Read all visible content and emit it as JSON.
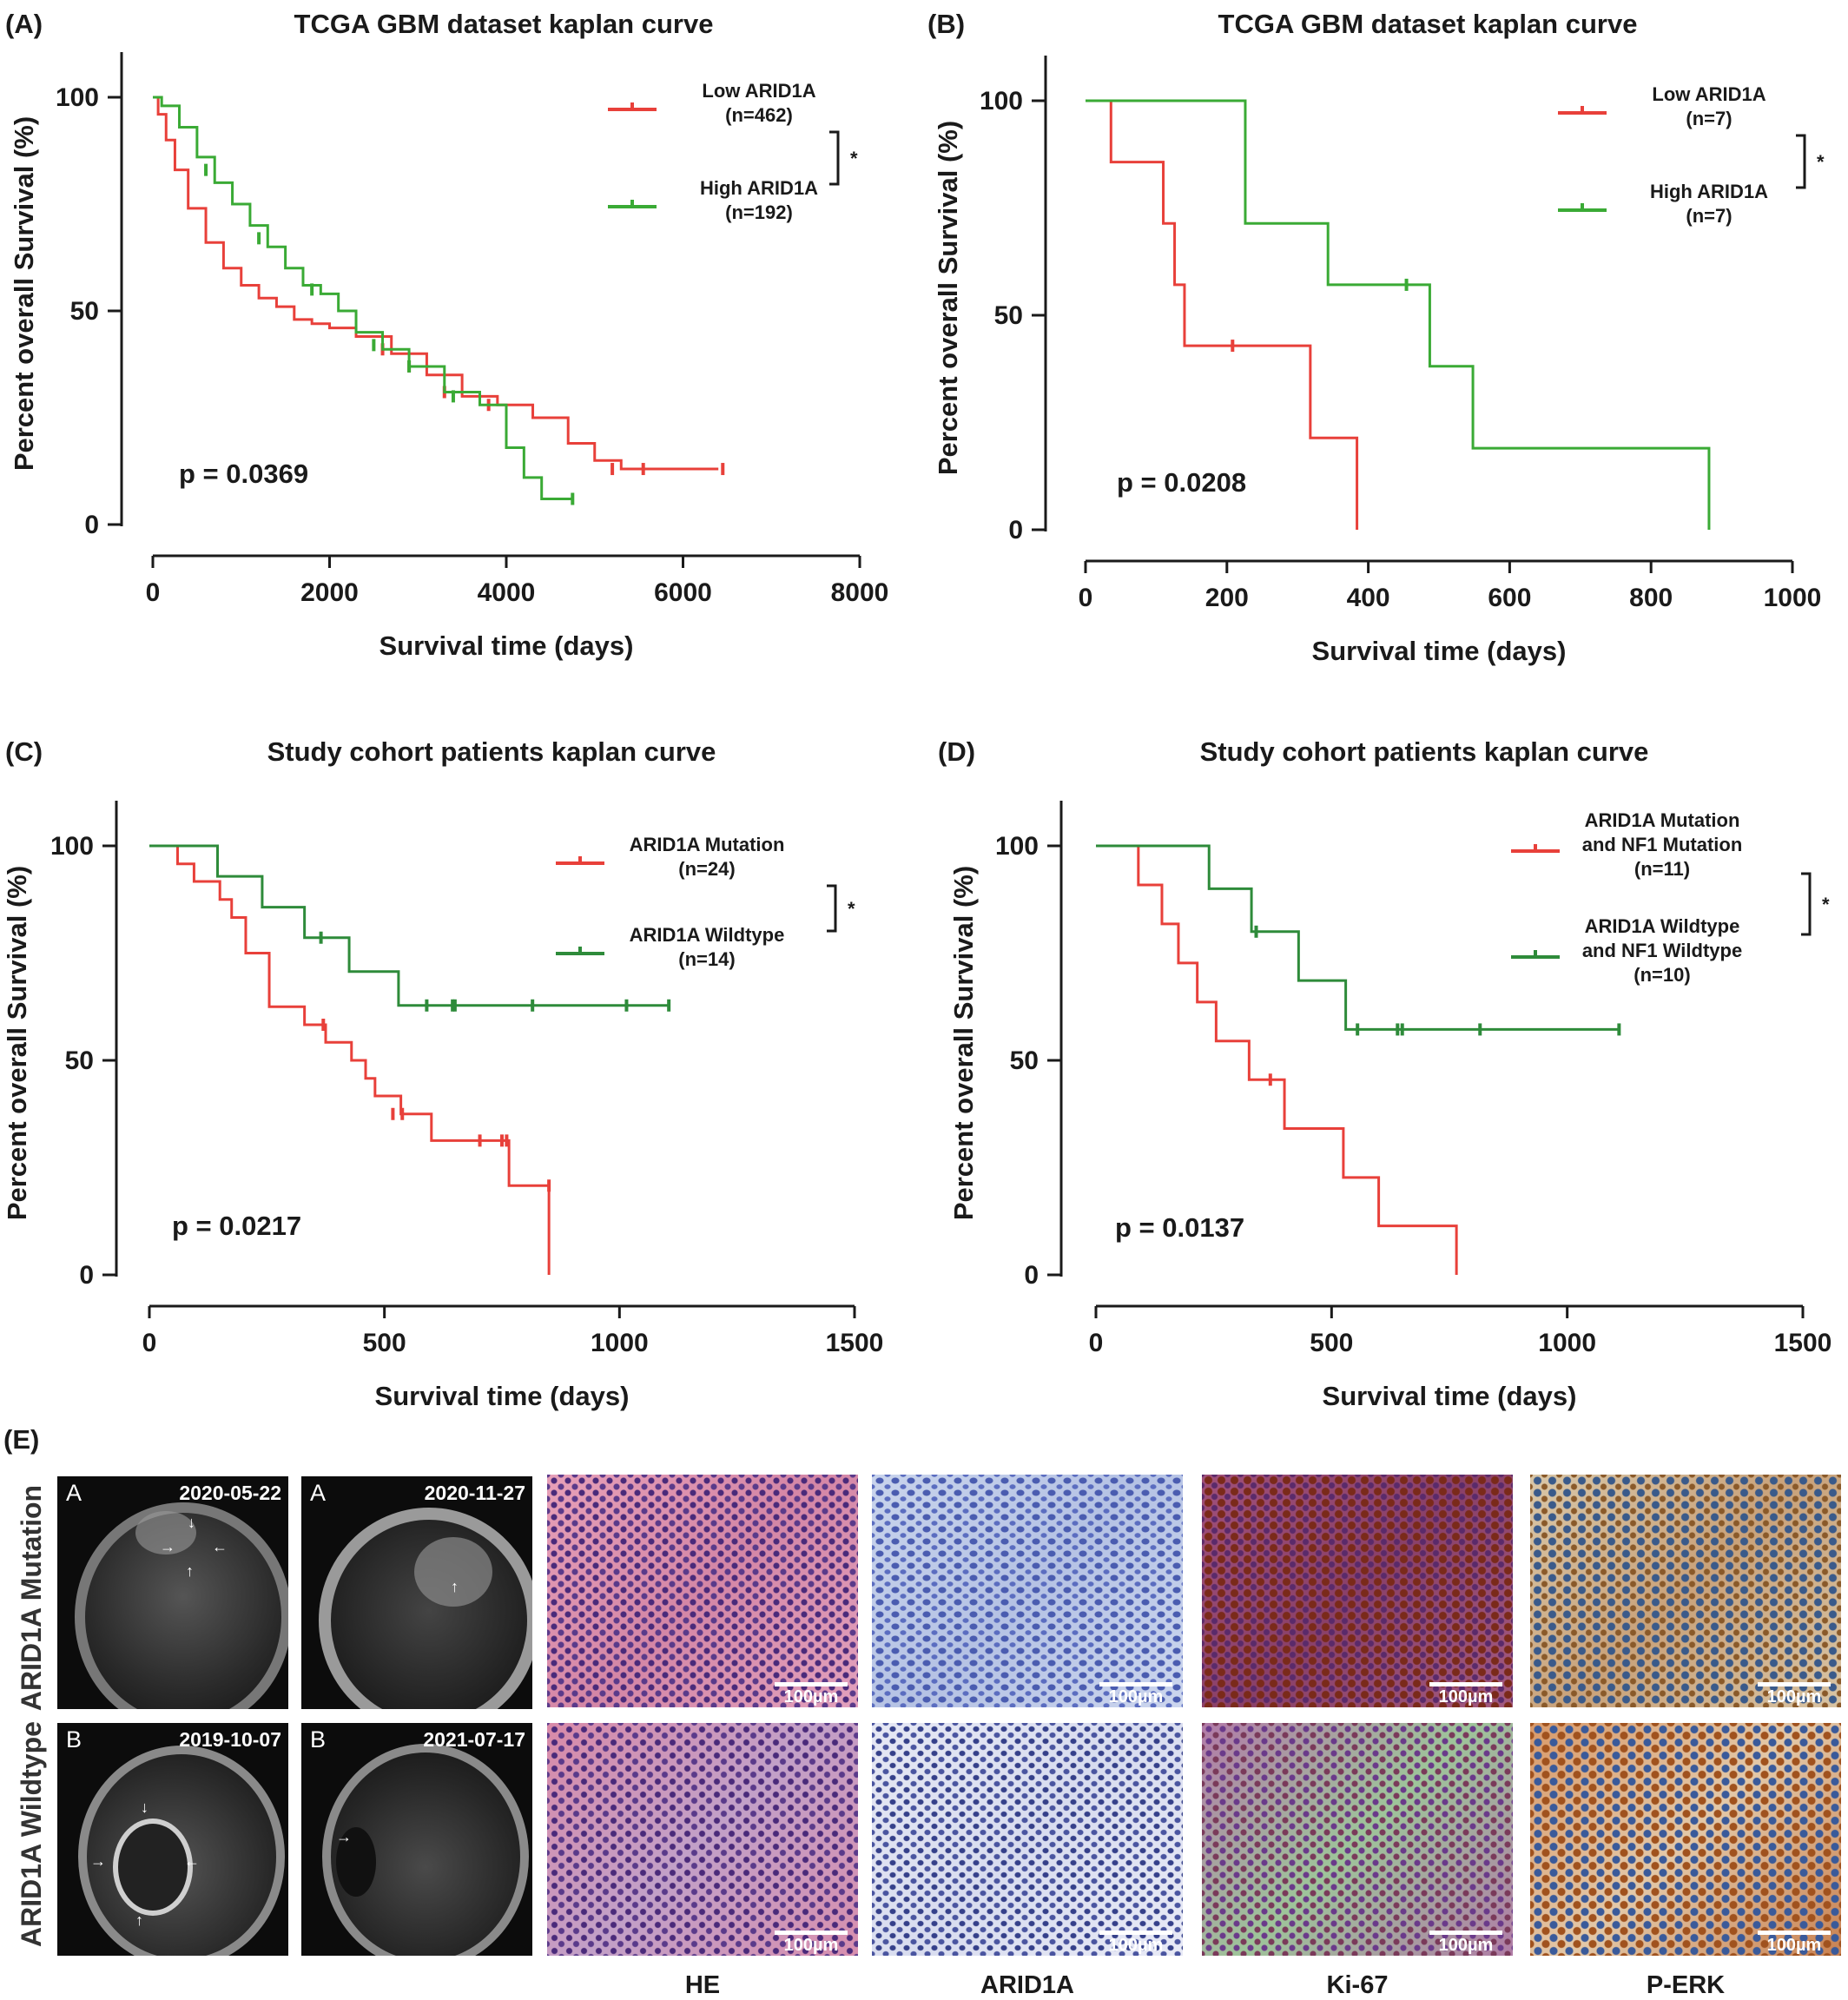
{
  "panels": [
    {
      "letter": "(A)",
      "title": "TCGA GBM dataset kaplan curve",
      "p_value": "p = 0.0369",
      "significance": "*",
      "legend": [
        {
          "lines": [
            "Low ARID1A",
            "(n=462)"
          ]
        },
        {
          "lines": [
            "High ARID1A",
            "(n=192)"
          ]
        }
      ]
    },
    {
      "letter": "(B)",
      "title": "TCGA GBM dataset kaplan curve",
      "p_value": "p = 0.0208",
      "significance": "*",
      "legend": [
        {
          "lines": [
            "Low ARID1A",
            "(n=7)"
          ]
        },
        {
          "lines": [
            "High ARID1A",
            "(n=7)"
          ]
        }
      ]
    },
    {
      "letter": "(C)",
      "title": "Study cohort patients kaplan curve",
      "p_value": "p = 0.0217",
      "significance": "*",
      "legend": [
        {
          "lines": [
            "ARID1A Mutation",
            "(n=24)"
          ]
        },
        {
          "lines": [
            "ARID1A Wildtype",
            "(n=14)"
          ]
        }
      ]
    },
    {
      "letter": "(D)",
      "title": "Study cohort patients kaplan curve",
      "p_value": "p = 0.0137",
      "significance": "*",
      "legend": [
        {
          "lines": [
            "ARID1A Mutation",
            "and NF1 Mutation",
            "(n=11)"
          ]
        },
        {
          "lines": [
            "ARID1A Wildtype",
            "and NF1 Wildtype",
            "(n=10)"
          ]
        }
      ]
    }
  ],
  "chart_data": [
    {
      "type": "line",
      "subtype": "kaplan-meier",
      "title": "TCGA GBM dataset kaplan curve",
      "xlabel": "Survival time (days)",
      "ylabel": "Percent overall Survival (%)",
      "xlim": [
        0,
        8000
      ],
      "ylim": [
        0,
        100
      ],
      "xticks": [
        0,
        2000,
        4000,
        6000,
        8000
      ],
      "yticks": [
        0,
        50,
        100
      ],
      "legend_position": "top-right",
      "series": [
        {
          "name": "Low ARID1A (n=462)",
          "color": "#e8403a",
          "x": [
            0,
            60,
            150,
            250,
            400,
            600,
            800,
            1000,
            1200,
            1400,
            1600,
            1800,
            2000,
            2300,
            2700,
            3100,
            3500,
            3900,
            4300,
            4700,
            5000,
            5300,
            6400
          ],
          "y": [
            100,
            96,
            90,
            83,
            74,
            66,
            60,
            56,
            53,
            51,
            48,
            47,
            46,
            44,
            40,
            35,
            30,
            28,
            25,
            19,
            15,
            13,
            13
          ],
          "censor_x": [
            2600,
            2900,
            3300,
            3800,
            5200,
            5550,
            6450
          ],
          "censor_y": [
            41,
            37,
            31,
            28,
            13,
            13,
            13
          ]
        },
        {
          "name": "High ARID1A (n=192)",
          "color": "#3aaa35",
          "x": [
            0,
            100,
            300,
            500,
            700,
            900,
            1100,
            1300,
            1500,
            1700,
            1900,
            2100,
            2300,
            2600,
            2900,
            3300,
            3700,
            4000,
            4200,
            4400,
            4750
          ],
          "y": [
            100,
            98,
            93,
            86,
            80,
            75,
            70,
            65,
            60,
            56,
            54,
            50,
            45,
            41,
            37,
            31,
            28,
            18,
            11,
            6,
            6
          ],
          "censor_x": [
            600,
            1200,
            1800,
            2500,
            2900,
            3400,
            4750
          ],
          "censor_y": [
            83,
            67,
            55,
            42,
            37,
            30,
            6
          ]
        }
      ]
    },
    {
      "type": "line",
      "subtype": "kaplan-meier",
      "title": "TCGA GBM dataset kaplan curve",
      "xlabel": "Survival time (days)",
      "ylabel": "Percent overall Survival (%)",
      "xlim": [
        0,
        1000
      ],
      "ylim": [
        0,
        100
      ],
      "xticks": [
        0,
        200,
        400,
        600,
        800,
        1000
      ],
      "yticks": [
        0,
        50,
        100
      ],
      "legend_position": "top-right",
      "series": [
        {
          "name": "Low ARID1A (n=7)",
          "color": "#e8403a",
          "x": [
            0,
            36,
            110,
            126,
            140,
            318,
            384
          ],
          "y": [
            100,
            85.7,
            71.4,
            57.1,
            42.9,
            21.4,
            0
          ],
          "censor_x": [
            208
          ],
          "censor_y": [
            42.9
          ]
        },
        {
          "name": "High ARID1A (n=7)",
          "color": "#3aaa35",
          "x": [
            0,
            226,
            343,
            487,
            548,
            882
          ],
          "y": [
            100,
            71.4,
            57.1,
            38.1,
            19.0,
            0
          ],
          "censor_x": [
            454
          ],
          "censor_y": [
            57.1
          ]
        }
      ]
    },
    {
      "type": "line",
      "subtype": "kaplan-meier",
      "title": "Study cohort patients kaplan curve",
      "xlabel": "Survival time (days)",
      "ylabel": "Percent overall Survival (%)",
      "xlim": [
        0,
        1500
      ],
      "ylim": [
        0,
        100
      ],
      "xticks": [
        0,
        500,
        1000,
        1500
      ],
      "yticks": [
        0,
        50,
        100
      ],
      "legend_position": "top-right",
      "series": [
        {
          "name": "ARID1A Mutation (n=24)",
          "color": "#e8403a",
          "x": [
            0,
            60,
            95,
            150,
            175,
            205,
            255,
            330,
            375,
            430,
            460,
            480,
            535,
            600,
            765,
            850
          ],
          "y": [
            100,
            95.8,
            91.7,
            87.5,
            83.3,
            75,
            62.5,
            58.3,
            54.2,
            50,
            45.8,
            41.7,
            37.5,
            31.3,
            20.8,
            0
          ],
          "censor_x": [
            370,
            518,
            538,
            703,
            750,
            760,
            850
          ],
          "censor_y": [
            58.3,
            37.5,
            37.5,
            31.3,
            31.3,
            31.3,
            20.8
          ]
        },
        {
          "name": "ARID1A Wildtype (n=14)",
          "color": "#2e8b3a",
          "x": [
            0,
            145,
            240,
            330,
            425,
            530,
            1105
          ],
          "y": [
            100,
            92.9,
            85.7,
            78.6,
            70.7,
            62.8,
            62.8
          ],
          "censor_x": [
            365,
            590,
            645,
            650,
            815,
            1015,
            1105
          ],
          "censor_y": [
            78.6,
            62.8,
            62.8,
            62.8,
            62.8,
            62.8,
            62.8
          ]
        }
      ]
    },
    {
      "type": "line",
      "subtype": "kaplan-meier",
      "title": "Study cohort patients kaplan curve",
      "xlabel": "Survival time (days)",
      "ylabel": "Percent overall Survival (%)",
      "xlim": [
        0,
        1500
      ],
      "ylim": [
        0,
        100
      ],
      "xticks": [
        0,
        500,
        1000,
        1500
      ],
      "yticks": [
        0,
        50,
        100
      ],
      "legend_position": "top-right",
      "series": [
        {
          "name": "ARID1A Mutation and NF1 Mutation (n=11)",
          "color": "#e8403a",
          "x": [
            0,
            90,
            140,
            175,
            215,
            255,
            325,
            400,
            525,
            600,
            765
          ],
          "y": [
            100,
            90.9,
            81.8,
            72.7,
            63.6,
            54.5,
            45.5,
            34.1,
            22.7,
            11.4,
            0
          ],
          "censor_x": [
            370
          ],
          "censor_y": [
            45.5
          ]
        },
        {
          "name": "ARID1A Wildtype and NF1 Wildtype (n=10)",
          "color": "#2e8b3a",
          "x": [
            0,
            240,
            330,
            430,
            530,
            1110
          ],
          "y": [
            100,
            90,
            80,
            68.6,
            57.2,
            57.2
          ],
          "censor_x": [
            340,
            555,
            640,
            650,
            815,
            1110
          ],
          "censor_y": [
            80,
            57.2,
            57.2,
            57.2,
            57.2,
            57.2
          ]
        }
      ]
    }
  ],
  "figure_e": {
    "letter": "(E)",
    "rows": [
      "ARID1A Mutation",
      "ARID1A Wildtype"
    ],
    "mri": [
      {
        "tag": "A",
        "date": "2020-05-22"
      },
      {
        "tag": "A",
        "date": "2020-11-27"
      },
      {
        "tag": "B",
        "date": "2019-10-07"
      },
      {
        "tag": "B",
        "date": "2021-07-17"
      }
    ],
    "stains": [
      "HE",
      "ARID1A",
      "Ki-67",
      "P-ERK"
    ],
    "scale_bar": "100µm"
  }
}
